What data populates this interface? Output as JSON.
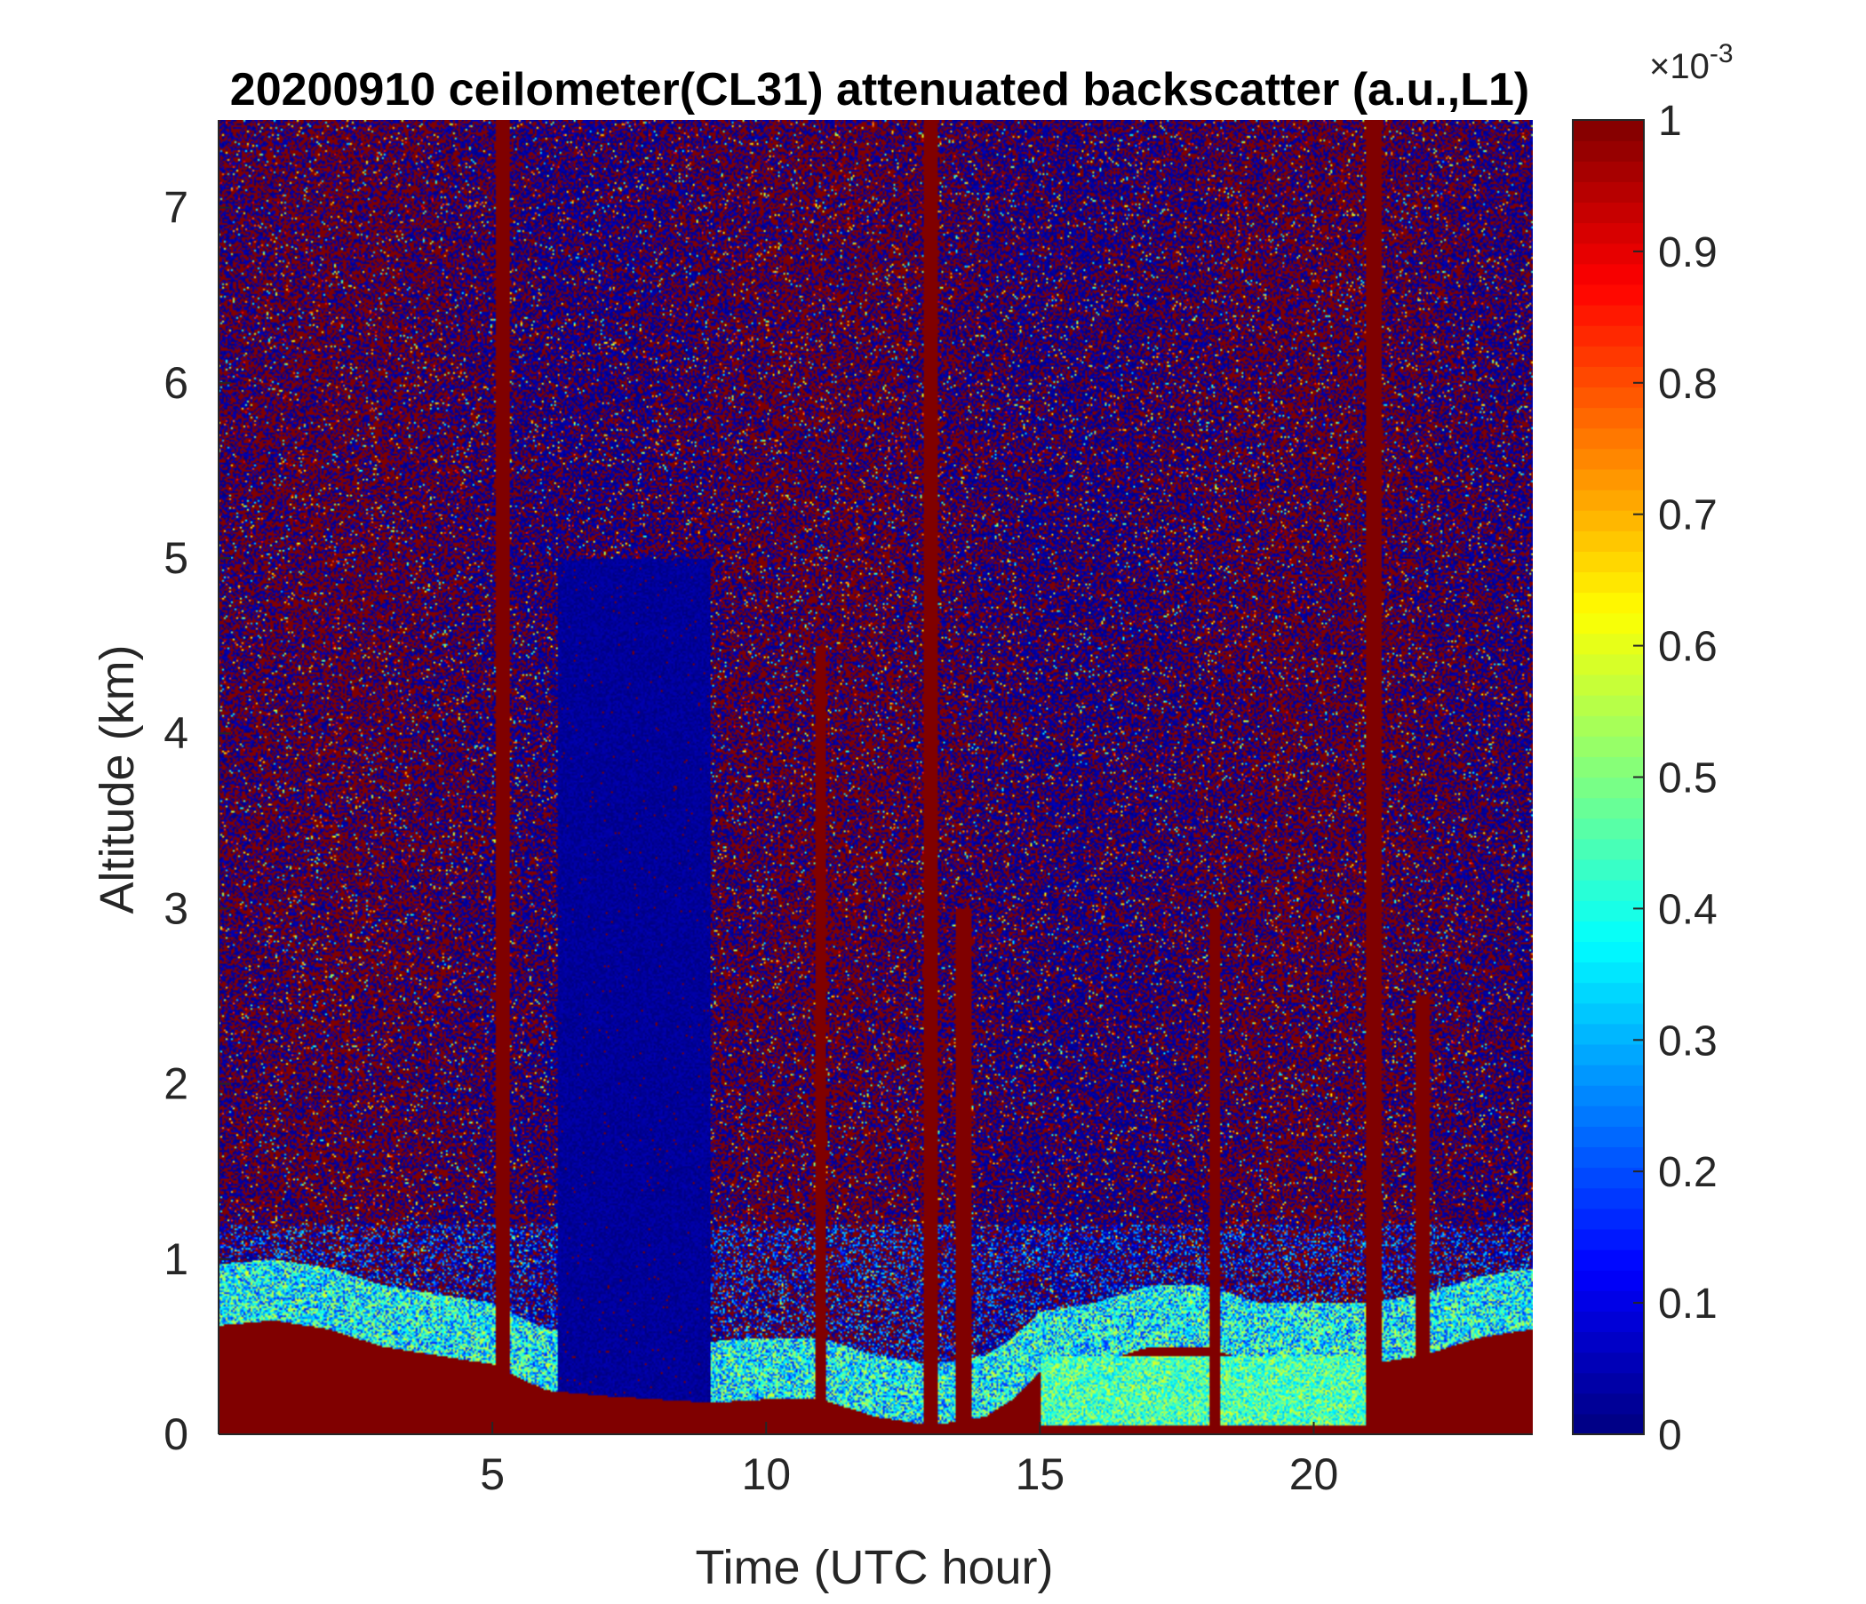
{
  "chart_data": {
    "type": "heatmap",
    "title": "20200910 ceilometer(CL31) attenuated backscatter (a.u.,L1)",
    "xlabel": "Time (UTC hour)",
    "ylabel": "Altitude (km)",
    "xlim": [
      0,
      24
    ],
    "ylim": [
      0,
      7.5
    ],
    "x_ticks": [
      5,
      10,
      15,
      20
    ],
    "y_ticks": [
      0,
      1,
      2,
      3,
      4,
      5,
      6,
      7
    ],
    "colorbar": {
      "colormap": "jet",
      "range": [
        0,
        1
      ],
      "ticks": [
        0,
        0.1,
        0.2,
        0.3,
        0.4,
        0.5,
        0.6,
        0.7,
        0.8,
        0.9,
        1
      ],
      "scale_label": "×10^{-3}"
    },
    "colors": {
      "background_noise": "#00007f",
      "saturated": "#7f0000"
    },
    "features": [
      {
        "kind": "boundary_layer",
        "t": [
          0,
          1,
          2,
          3,
          4,
          5,
          5.5,
          6,
          7,
          8,
          9,
          10,
          11,
          12,
          13,
          14,
          14.5,
          15,
          16,
          17,
          18,
          19,
          20,
          21,
          22,
          23,
          24
        ],
        "top_km": [
          0.62,
          0.65,
          0.6,
          0.5,
          0.45,
          0.4,
          0.32,
          0.25,
          0.22,
          0.2,
          0.18,
          0.2,
          0.2,
          0.1,
          0.05,
          0.1,
          0.2,
          0.35,
          0.4,
          0.5,
          0.5,
          0.4,
          0.4,
          0.4,
          0.45,
          0.55,
          0.6
        ]
      },
      {
        "kind": "clear_region",
        "t_start": 6.2,
        "t_end": 9.0,
        "top_km": 5.0
      },
      {
        "kind": "rain_column",
        "t": 5.2,
        "width_h": 0.25,
        "top_km": 7.5
      },
      {
        "kind": "rain_column",
        "t": 11.0,
        "width_h": 0.2,
        "top_km": 4.5
      },
      {
        "kind": "rain_column",
        "t": 13.0,
        "width_h": 0.25,
        "top_km": 7.5
      },
      {
        "kind": "rain_column",
        "t": 13.6,
        "width_h": 0.3,
        "top_km": 3.0
      },
      {
        "kind": "rain_column",
        "t": 18.2,
        "width_h": 0.2,
        "top_km": 3.0
      },
      {
        "kind": "rain_column",
        "t": 21.1,
        "width_h": 0.3,
        "top_km": 7.5
      },
      {
        "kind": "rain_column",
        "t": 22.0,
        "width_h": 0.25,
        "top_km": 2.5
      },
      {
        "kind": "elevated_aerosol",
        "t_start": 15.0,
        "t_end": 21.0,
        "bottom_km": 0.05,
        "top_km": 0.45,
        "level": 0.45
      }
    ]
  }
}
